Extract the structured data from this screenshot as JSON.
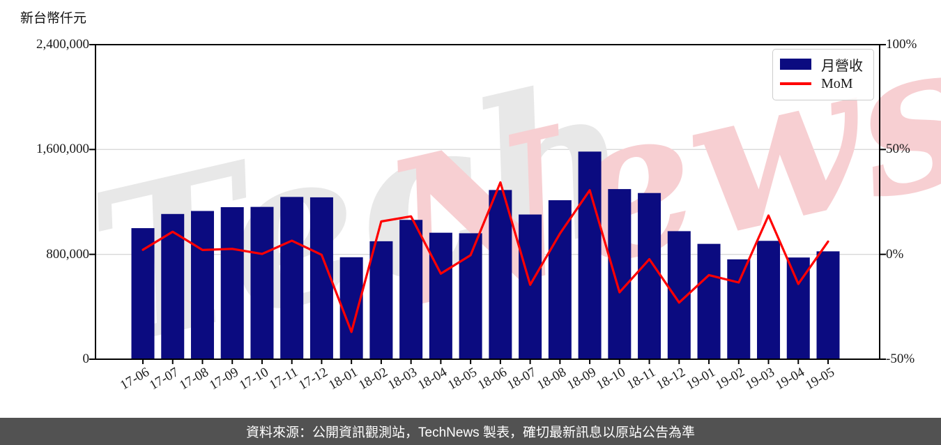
{
  "page": {
    "y_axis_title": "新台幣仟元",
    "footer_text": "資料來源：公開資訊觀測站，TechNews 製表，確切最新訊息以原站公告為準"
  },
  "legend": {
    "bar_label": "月營收",
    "line_label": "MoM"
  },
  "watermark": {
    "part1": "Tech",
    "part2": "News",
    "color1": "#e8e8e8",
    "color2": "#f7cfd2"
  },
  "colors": {
    "bar": "#0b0b80",
    "line": "#ff0000",
    "grid": "#d9d9d9",
    "spine": "#000000",
    "footer_bg": "#525252",
    "footer_text": "#ffffff"
  },
  "chart_data": {
    "type": "bar+line combo",
    "categories": [
      "17-06",
      "17-07",
      "17-08",
      "17-09",
      "17-10",
      "17-11",
      "17-12",
      "18-01",
      "18-02",
      "18-03",
      "18-04",
      "18-05",
      "18-06",
      "18-07",
      "18-08",
      "18-09",
      "18-10",
      "18-11",
      "18-12",
      "19-01",
      "19-02",
      "19-03",
      "19-04",
      "19-05"
    ],
    "series": [
      {
        "name": "月營收",
        "type": "bar",
        "axis": "left",
        "unit": "新台幣仟元",
        "values": [
          1000000,
          1108000,
          1131000,
          1160000,
          1162000,
          1238000,
          1235000,
          778000,
          900000,
          1063000,
          965000,
          961000,
          1291000,
          1104000,
          1213000,
          1584000,
          1298000,
          1268000,
          977000,
          880000,
          762000,
          903000,
          776000,
          823000
        ]
      },
      {
        "name": "MoM",
        "type": "line",
        "axis": "right",
        "unit": "%",
        "values": [
          2.2,
          10.8,
          2.1,
          2.6,
          0.2,
          6.5,
          -0.2,
          -37.0,
          15.7,
          18.1,
          -9.2,
          -0.4,
          34.3,
          -14.5,
          9.9,
          30.6,
          -18.1,
          -2.3,
          -23.0,
          -9.9,
          -13.4,
          18.5,
          -14.1,
          6.1
        ]
      }
    ],
    "left_axis": {
      "range": [
        0,
        2400000
      ],
      "tick_values": [
        0,
        800000,
        1600000,
        2400000
      ],
      "tick_labels": [
        "0",
        "800,000",
        "1,600,000",
        "2,400,000"
      ]
    },
    "right_axis": {
      "range": [
        -50,
        100
      ],
      "tick_values": [
        -50,
        0,
        50,
        100
      ],
      "tick_labels": [
        "-50%",
        "0%",
        "50%",
        "100%"
      ]
    },
    "grid": "horizontal lines at 0% and 50% (800,000 / 1,600,000)",
    "legend_position": "top-right inside plot"
  }
}
